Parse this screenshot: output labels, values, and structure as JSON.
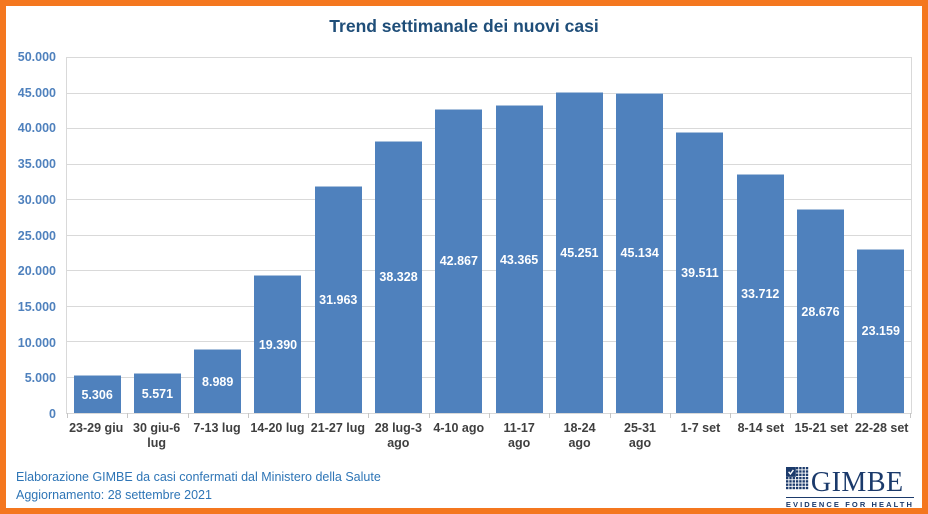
{
  "frame": {
    "border_color": "#F4771F",
    "background": "#FFFFFF"
  },
  "header": {
    "title": "Trend settimanale dei nuovi casi",
    "title_color": "#1F4E79"
  },
  "footer": {
    "line1": "Elaborazione GIMBE da casi confermati dal Ministero della Salute",
    "line2": "Aggiornamento: 28 settembre 2021",
    "text_color": "#2E75B6"
  },
  "logo": {
    "icon": "gimbe-grid-check-icon",
    "wordmark": "GIMBE",
    "tagline": "EVIDENCE FOR HEALTH",
    "color": "#1B3A6B"
  },
  "chart_data": {
    "type": "bar",
    "title": "Trend settimanale dei nuovi casi",
    "categories": [
      "23-29 giu",
      "30 giu-6 lug",
      "7-13 lug",
      "14-20 lug",
      "21-27 lug",
      "28 lug-3 ago",
      "4-10 ago",
      "11-17 ago",
      "18-24 ago",
      "25-31 ago",
      "1-7 set",
      "8-14 set",
      "15-21 set",
      "22-28 set"
    ],
    "values": [
      5306,
      5571,
      8989,
      19390,
      31963,
      38328,
      42867,
      43365,
      45251,
      45134,
      39511,
      33712,
      28676,
      23159
    ],
    "value_labels": [
      "5.306",
      "5.571",
      "8.989",
      "19.390",
      "31.963",
      "38.328",
      "42.867",
      "43.365",
      "45.251",
      "45.134",
      "39.511",
      "33.712",
      "28.676",
      "23.159"
    ],
    "xlabel": "",
    "ylabel": "",
    "ylim": [
      0,
      50000
    ],
    "ytick_step": 5000,
    "ytick_labels": [
      "0",
      "5.000",
      "10.000",
      "15.000",
      "20.000",
      "25.000",
      "30.000",
      "35.000",
      "40.000",
      "45.000",
      "50.000"
    ],
    "grid": true,
    "legend": false,
    "bar_color": "#4F81BD",
    "bar_edge_color": "#A9C1DD",
    "value_label_color": "#FFFFFF",
    "ytick_label_color": "#4F81BD",
    "xtick_label_color": "#3F3F3F",
    "gridline_color": "#D9D9D9"
  }
}
